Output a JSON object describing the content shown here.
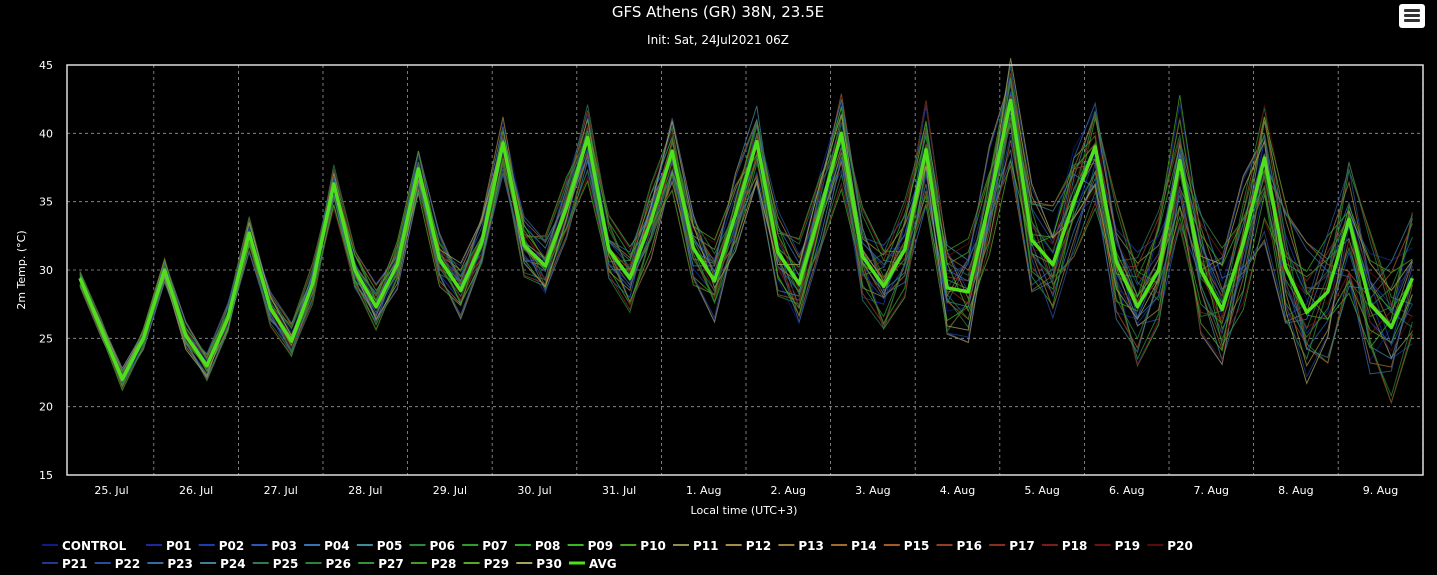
{
  "chart_data": {
    "type": "line",
    "title": "GFS Athens (GR) 38N, 23.5E",
    "subtitle": "Init: Sat, 24Jul2021 06Z",
    "xlabel": "Local time (UTC+3)",
    "ylabel": "2m Temp. (°C)",
    "ylim": [
      15,
      45
    ],
    "y_ticks": [
      "15",
      "20",
      "25",
      "30",
      "35",
      "40",
      "45"
    ],
    "x_ticks": [
      "25. Jul",
      "26. Jul",
      "27. Jul",
      "28. Jul",
      "29. Jul",
      "30. Jul",
      "31. Jul",
      "1. Aug",
      "2. Aug",
      "3. Aug",
      "4. Aug",
      "5. Aug",
      "6. Aug",
      "7. Aug",
      "8. Aug",
      "9. Aug"
    ],
    "x_start": "24Jul2021 12:00 (UTC+3)",
    "x_step_hours": 6,
    "grid": true,
    "legend_position": "bottom",
    "avg_color": "#4fe01c",
    "avg_values": [
      29.4,
      25.7,
      22.0,
      25.0,
      30.0,
      25.2,
      23.0,
      26.5,
      32.7,
      27.2,
      24.8,
      29.0,
      36.3,
      30.0,
      27.3,
      30.4,
      37.4,
      30.8,
      28.5,
      32.0,
      39.3,
      31.8,
      30.3,
      34.6,
      39.7,
      31.5,
      29.4,
      33.6,
      38.7,
      31.6,
      29.2,
      34.1,
      39.4,
      31.3,
      29.0,
      34.3,
      40.0,
      31.0,
      28.8,
      31.5,
      38.8,
      28.7,
      28.4,
      35.0,
      42.4,
      32.2,
      30.4,
      35.0,
      39.0,
      30.6,
      27.3,
      30.0,
      38.0,
      30.0,
      27.1,
      32.0,
      38.2,
      30.2,
      26.9,
      28.4,
      33.7,
      27.5,
      25.8,
      29.4
    ],
    "series": [
      {
        "name": "CONTROL",
        "color": "#0c1d8a",
        "values": []
      },
      {
        "name": "P01",
        "color": "#1a2a9a",
        "values": []
      },
      {
        "name": "P02",
        "color": "#1f3bb0",
        "values": []
      },
      {
        "name": "P03",
        "color": "#2a56bd",
        "values": []
      },
      {
        "name": "P04",
        "color": "#3772b8",
        "values": []
      },
      {
        "name": "P05",
        "color": "#3f8a9c",
        "values": []
      },
      {
        "name": "P06",
        "color": "#2b8a3a",
        "values": []
      },
      {
        "name": "P07",
        "color": "#2d9c2d",
        "values": []
      },
      {
        "name": "P08",
        "color": "#30ad25",
        "values": []
      },
      {
        "name": "P09",
        "color": "#3bb521",
        "values": []
      },
      {
        "name": "P10",
        "color": "#4aa41d",
        "values": []
      },
      {
        "name": "P11",
        "color": "#8f8f55",
        "values": []
      },
      {
        "name": "P12",
        "color": "#a68c45",
        "values": []
      },
      {
        "name": "P13",
        "color": "#9d7a3d",
        "values": []
      },
      {
        "name": "P14",
        "color": "#a16a2f",
        "values": []
      },
      {
        "name": "P15",
        "color": "#a55a26",
        "values": []
      },
      {
        "name": "P16",
        "color": "#92401f",
        "values": []
      },
      {
        "name": "P17",
        "color": "#8a2f1f",
        "values": []
      },
      {
        "name": "P18",
        "color": "#7d1c16",
        "values": []
      },
      {
        "name": "P19",
        "color": "#70120f",
        "values": []
      },
      {
        "name": "P20",
        "color": "#5a0a0a",
        "values": []
      },
      {
        "name": "P21",
        "color": "#1d3a8e",
        "values": []
      },
      {
        "name": "P22",
        "color": "#284d9e",
        "values": []
      },
      {
        "name": "P23",
        "color": "#3569a8",
        "values": []
      },
      {
        "name": "P24",
        "color": "#427f9c",
        "values": []
      },
      {
        "name": "P25",
        "color": "#2f7a55",
        "values": []
      },
      {
        "name": "P26",
        "color": "#2b8240",
        "values": []
      },
      {
        "name": "P27",
        "color": "#359235",
        "values": []
      },
      {
        "name": "P28",
        "color": "#3f9f2a",
        "values": []
      },
      {
        "name": "P29",
        "color": "#58a827",
        "values": []
      },
      {
        "name": "P30",
        "color": "#a8a35a",
        "values": []
      },
      {
        "name": "AVG",
        "color": "#4fe01c",
        "values": []
      }
    ]
  }
}
